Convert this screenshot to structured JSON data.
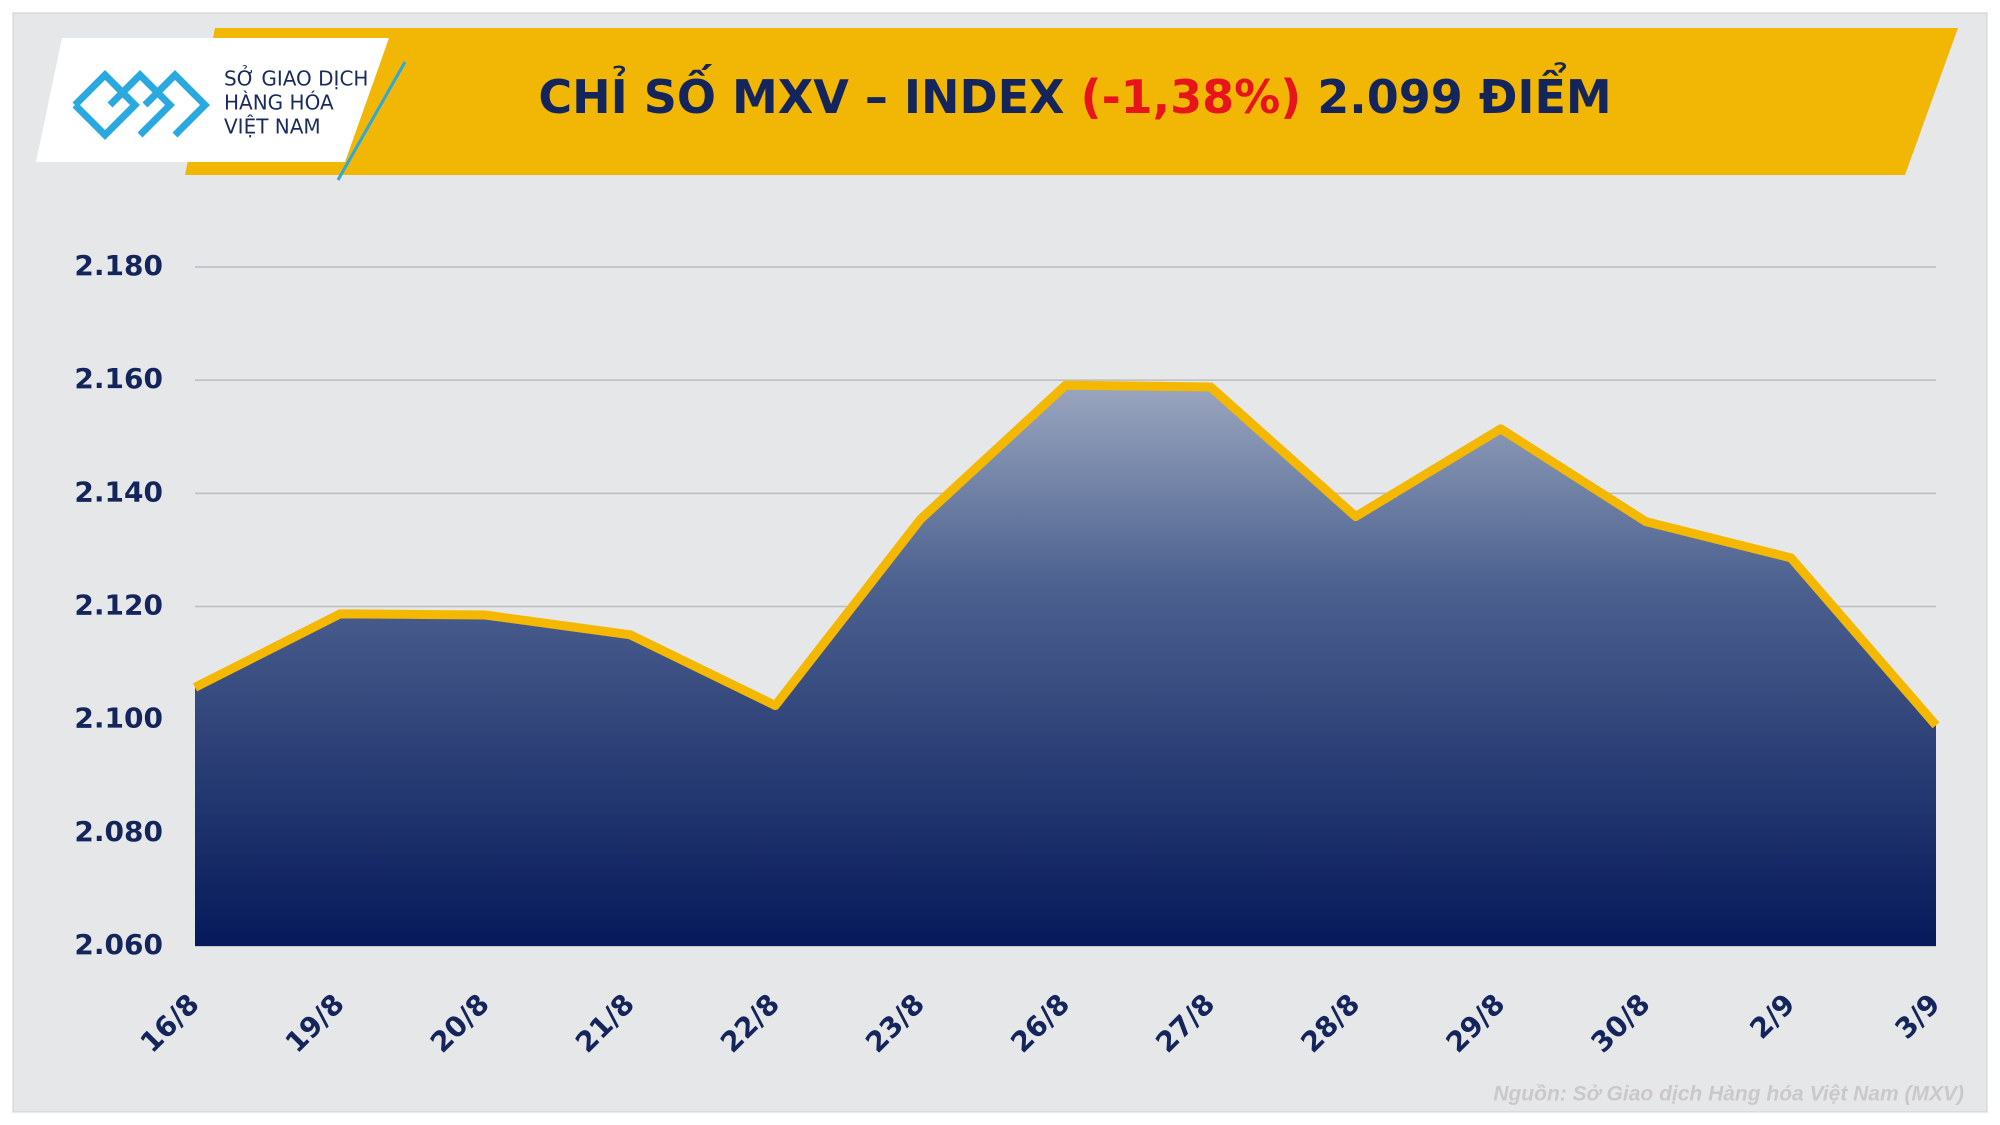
{
  "logo": {
    "line1": "SỞ GIAO DỊCH",
    "line2": "HÀNG HÓA",
    "line3": "VIỆT NAM"
  },
  "chart_data": {
    "type": "area",
    "title": "CHỈ SỐ MXV – INDEX",
    "title_change": "(-1,38%)",
    "title_value": "2.099 ĐIỂM",
    "categories": [
      "16/8",
      "19/8",
      "20/8",
      "21/8",
      "22/8",
      "23/8",
      "26/8",
      "27/8",
      "28/8",
      "29/8",
      "30/8",
      "2/9",
      "3/9"
    ],
    "values": [
      2105.7,
      2118.7,
      2118.5,
      2115,
      2102.5,
      2135.4,
      2159.1,
      2158.8,
      2135.9,
      2151.4,
      2135,
      2128.6,
      2099
    ],
    "line_color": "#f5b800",
    "ylim": [
      2060,
      2180
    ],
    "yticks": [
      {
        "value": 2060,
        "label": "2.060"
      },
      {
        "value": 2080,
        "label": "2.080"
      },
      {
        "value": 2100,
        "label": "2.100"
      },
      {
        "value": 2120,
        "label": "2.120"
      },
      {
        "value": 2140,
        "label": "2.140"
      },
      {
        "value": 2160,
        "label": "2.160"
      },
      {
        "value": 2180,
        "label": "2.180"
      }
    ],
    "grid": true,
    "source": "Nguồn: Sở Giao dịch Hàng hóa Việt Nam (MXV)"
  }
}
